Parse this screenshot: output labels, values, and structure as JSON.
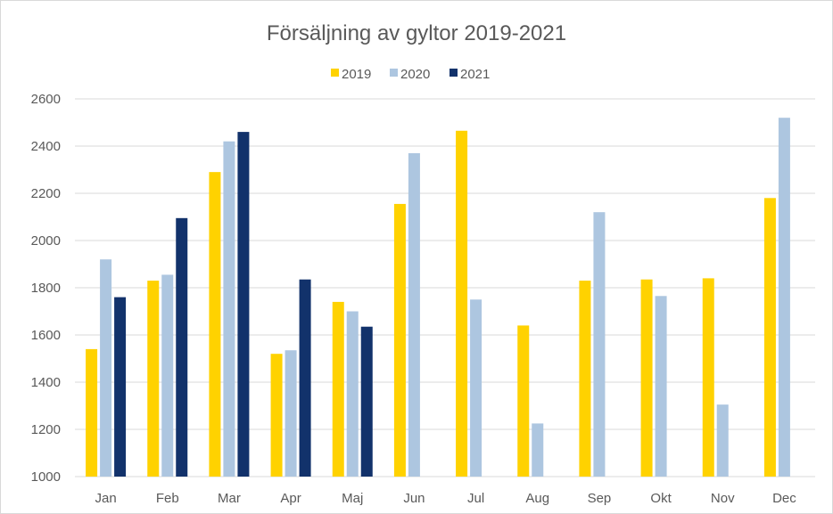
{
  "chart_data": {
    "type": "bar",
    "title": "Försäljning av gyltor 2019-2021",
    "xlabel": "",
    "ylabel": "",
    "categories": [
      "Jan",
      "Feb",
      "Mar",
      "Apr",
      "Maj",
      "Jun",
      "Jul",
      "Aug",
      "Sep",
      "Okt",
      "Nov",
      "Dec"
    ],
    "series": [
      {
        "name": "2019",
        "color": "#ffd200",
        "values": [
          1540,
          1830,
          2290,
          1520,
          1740,
          2155,
          2465,
          1640,
          1830,
          1835,
          1840,
          2180
        ]
      },
      {
        "name": "2020",
        "color": "#adc6e0",
        "values": [
          1920,
          1855,
          2420,
          1535,
          1700,
          2370,
          1750,
          1225,
          2120,
          1765,
          1305,
          2520
        ]
      },
      {
        "name": "2021",
        "color": "#12326b",
        "values": [
          1760,
          2095,
          2460,
          1835,
          1635,
          null,
          null,
          null,
          null,
          null,
          null,
          null
        ]
      }
    ],
    "ylim": [
      1000,
      2600
    ],
    "yticks": [
      1000,
      1200,
      1400,
      1600,
      1800,
      2000,
      2200,
      2400,
      2600
    ],
    "grid": true,
    "legend_position": "top-center"
  }
}
